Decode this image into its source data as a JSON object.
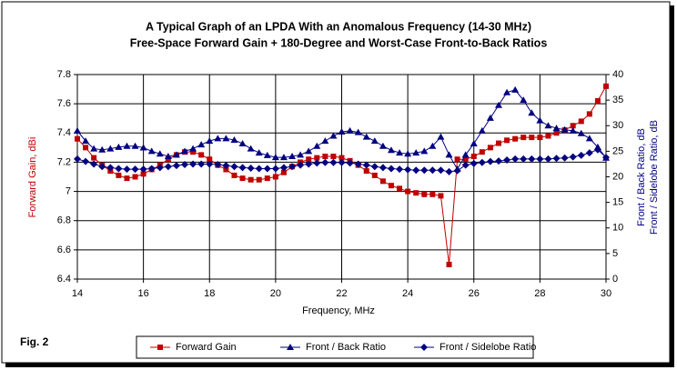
{
  "chart_data": {
    "type": "line",
    "title": "A Typical Graph of an LPDA With an Anomalous Frequency (14-30 MHz)",
    "subtitle": "Free-Space Forward Gain + 180-Degree and Worst-Case Front-to-Back Ratios",
    "xlabel": "Frequency, MHz",
    "ylabel": "Forward Gain, dBi",
    "y2label": [
      "Front / Back Ratio, dB",
      "Front / Sidelobe Ratio, dB"
    ],
    "annotation": "Fig. 2",
    "grid": true,
    "legend": "bottom",
    "xlim": [
      14,
      30
    ],
    "xticks": [
      14,
      16,
      18,
      20,
      22,
      24,
      26,
      28,
      30
    ],
    "ylim": [
      6.4,
      7.8
    ],
    "yticks": [
      6.4,
      6.6,
      6.8,
      7,
      7.2,
      7.4,
      7.6,
      7.8
    ],
    "y2lim": [
      0,
      40
    ],
    "y2ticks": [
      0,
      5,
      10,
      15,
      20,
      25,
      30,
      35,
      40
    ],
    "x": [
      14,
      14.25,
      14.5,
      14.75,
      15,
      15.25,
      15.5,
      15.75,
      16,
      16.25,
      16.5,
      16.75,
      17,
      17.25,
      17.5,
      17.75,
      18,
      18.25,
      18.5,
      18.75,
      19,
      19.25,
      19.5,
      19.75,
      20,
      20.25,
      20.5,
      20.75,
      21,
      21.25,
      21.5,
      21.75,
      22,
      22.25,
      22.5,
      22.75,
      23,
      23.25,
      23.5,
      23.75,
      24,
      24.25,
      24.5,
      24.75,
      25,
      25.25,
      25.5,
      25.75,
      26,
      26.25,
      26.5,
      26.75,
      27,
      27.25,
      27.5,
      27.75,
      28,
      28.25,
      28.5,
      28.75,
      29,
      29.25,
      29.5,
      29.75,
      30
    ],
    "series": [
      {
        "name": "Forward Gain",
        "color": "#c00000",
        "marker": "square",
        "values": [
          7.36,
          7.3,
          7.23,
          7.18,
          7.14,
          7.11,
          7.09,
          7.1,
          7.12,
          7.15,
          7.18,
          7.22,
          7.25,
          7.27,
          7.27,
          7.25,
          7.22,
          7.18,
          7.15,
          7.11,
          7.09,
          7.08,
          7.08,
          7.09,
          7.1,
          7.13,
          7.17,
          7.2,
          7.22,
          7.23,
          7.24,
          7.24,
          7.23,
          7.21,
          7.18,
          7.14,
          7.11,
          7.07,
          7.04,
          7.02,
          7,
          6.99,
          6.98,
          6.98,
          6.97,
          6.5,
          7.22,
          7.22,
          7.24,
          7.27,
          7.3,
          7.33,
          7.35,
          7.36,
          7.37,
          7.37,
          7.37,
          7.38,
          7.4,
          7.42,
          7.45,
          7.48,
          7.53,
          7.62,
          7.72
        ]
      },
      {
        "name": "Front / Back Ratio",
        "color": "#000080",
        "marker": "triangle",
        "axis": "y2",
        "values": [
          29,
          27,
          25.5,
          25.3,
          25.5,
          25.8,
          26,
          26,
          25.7,
          25,
          24.5,
          24,
          24.3,
          25,
          25.5,
          26.3,
          27,
          27.5,
          27.5,
          27.2,
          26.5,
          25.5,
          24.7,
          24.2,
          23.8,
          23.8,
          24,
          24.3,
          25,
          26,
          27,
          28,
          28.8,
          29,
          28.7,
          27.8,
          27,
          26,
          25.2,
          24.7,
          24.5,
          24.7,
          25,
          26,
          27.8,
          24.3,
          21.5,
          24.3,
          26.5,
          29,
          31.5,
          34,
          36.5,
          37,
          35,
          32.5,
          31,
          30,
          29.5,
          29.2,
          29,
          28.5,
          27.5,
          25.8,
          23.7
        ]
      },
      {
        "name": "Front / Sidelobe Ratio",
        "color": "#000080",
        "marker": "diamond",
        "axis": "y2",
        "values": [
          23.5,
          23,
          22.5,
          22,
          21.8,
          21.6,
          21.5,
          21.5,
          21.5,
          21.6,
          21.8,
          22,
          22.2,
          22.4,
          22.5,
          22.5,
          22.5,
          22.4,
          22.2,
          22,
          21.8,
          21.7,
          21.6,
          21.6,
          21.6,
          21.8,
          22,
          22.3,
          22.5,
          22.7,
          22.8,
          22.8,
          22.8,
          22.7,
          22.5,
          22.3,
          22,
          21.8,
          21.6,
          21.5,
          21.4,
          21.3,
          21.3,
          21.3,
          21.3,
          21,
          21.2,
          22.3,
          22.6,
          22.8,
          23,
          23.1,
          23.3,
          23.5,
          23.5,
          23.5,
          23.5,
          23.5,
          23.6,
          23.7,
          23.9,
          24.2,
          24.7,
          25.3,
          23.8
        ]
      }
    ]
  }
}
